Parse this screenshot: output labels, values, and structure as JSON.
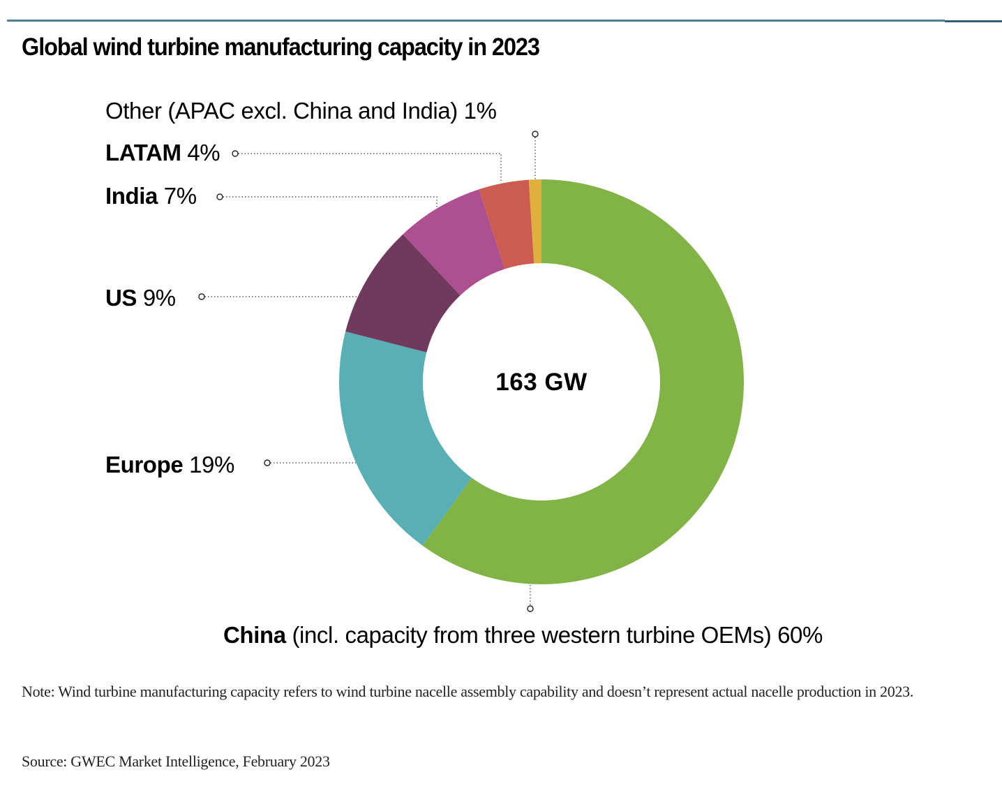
{
  "chart_data": {
    "type": "pie",
    "variant": "donut",
    "title": "Global wind turbine manufacturing capacity in 2023",
    "center_label": "163 GW",
    "unit": "%",
    "slices": [
      {
        "key": "china",
        "name": "China",
        "detail": "(incl. capacity from three western turbine OEMs)",
        "value": 60,
        "value_label": "60%",
        "color": "#81b347"
      },
      {
        "key": "europe",
        "name": "Europe",
        "detail": "",
        "value": 19,
        "value_label": "19%",
        "color": "#58b0b4"
      },
      {
        "key": "us",
        "name": "US",
        "detail": "",
        "value": 9,
        "value_label": "9%",
        "color": "#703a5f"
      },
      {
        "key": "india",
        "name": "India",
        "detail": "",
        "value": 7,
        "value_label": "7%",
        "color": "#ae508f"
      },
      {
        "key": "latam",
        "name": "LATAM",
        "detail": "",
        "value": 4,
        "value_label": "4%",
        "color": "#cc5c50"
      },
      {
        "key": "other",
        "name": "Other",
        "detail": "(APAC excl. China and India)",
        "value": 1,
        "value_label": "1%",
        "color": "#e0b03c"
      }
    ],
    "start_angle": "12 o'clock",
    "direction": "clockwise",
    "legend": "none (leader-line labels)"
  },
  "header": {
    "title": "Global wind turbine manufacturing capacity in 2023"
  },
  "footer": {
    "note": "Note: Wind turbine manufacturing capacity refers to wind turbine nacelle assembly capability and doesn’t represent actual nacelle production in 2023.",
    "source": "Source: GWEC Market Intelligence, February 2023"
  },
  "colors": {
    "rule": "#4d7f95",
    "rule_dark": "#2e5f7a",
    "leader": "#555555"
  }
}
